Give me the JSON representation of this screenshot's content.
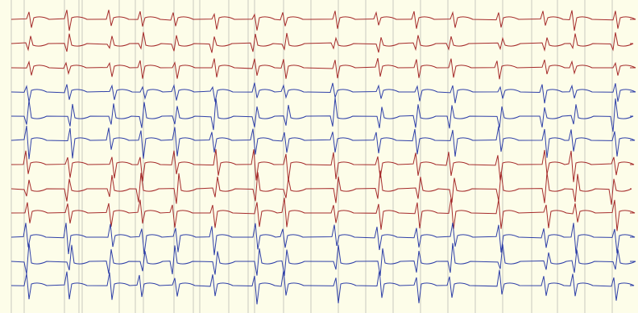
{
  "viewer": {
    "background": "#fdfde9",
    "gridline_color": "#c9c9c0"
  },
  "beat_markers_count": 27,
  "traces": [
    {
      "id": "lead-1",
      "color": "#a52a2a",
      "group": "red"
    },
    {
      "id": "lead-2",
      "color": "#a52a2a",
      "group": "red"
    },
    {
      "id": "lead-3",
      "color": "#a52a2a",
      "group": "red"
    },
    {
      "id": "lead-4",
      "color": "#2e3fa8",
      "group": "blue"
    },
    {
      "id": "lead-5",
      "color": "#2e3fa8",
      "group": "blue"
    },
    {
      "id": "lead-6",
      "color": "#2e3fa8",
      "group": "blue"
    },
    {
      "id": "lead-7",
      "color": "#a52a2a",
      "group": "red"
    },
    {
      "id": "lead-8",
      "color": "#a52a2a",
      "group": "red"
    },
    {
      "id": "lead-9",
      "color": "#a52a2a",
      "group": "red"
    },
    {
      "id": "lead-10",
      "color": "#2e3fa8",
      "group": "blue"
    },
    {
      "id": "lead-11",
      "color": "#2e3fa8",
      "group": "blue"
    },
    {
      "id": "lead-12",
      "color": "#2e3fa8",
      "group": "blue"
    }
  ]
}
